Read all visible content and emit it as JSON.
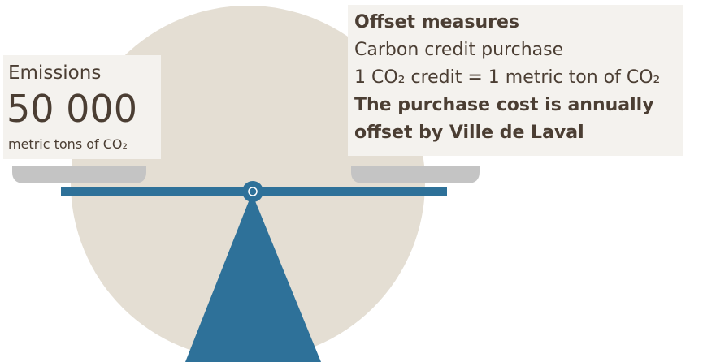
{
  "emissions": {
    "title": "Emissions",
    "amount": "50 000",
    "unit": "metric tons of CO₂"
  },
  "offset": {
    "title": "Offset measures",
    "measure": "Carbon credit purchase",
    "equivalence": "1 CO₂ credit = 1 metric ton of CO₂",
    "note_lines": [
      "The purchase cost is annually",
      "offset by Ville de Laval"
    ]
  }
}
